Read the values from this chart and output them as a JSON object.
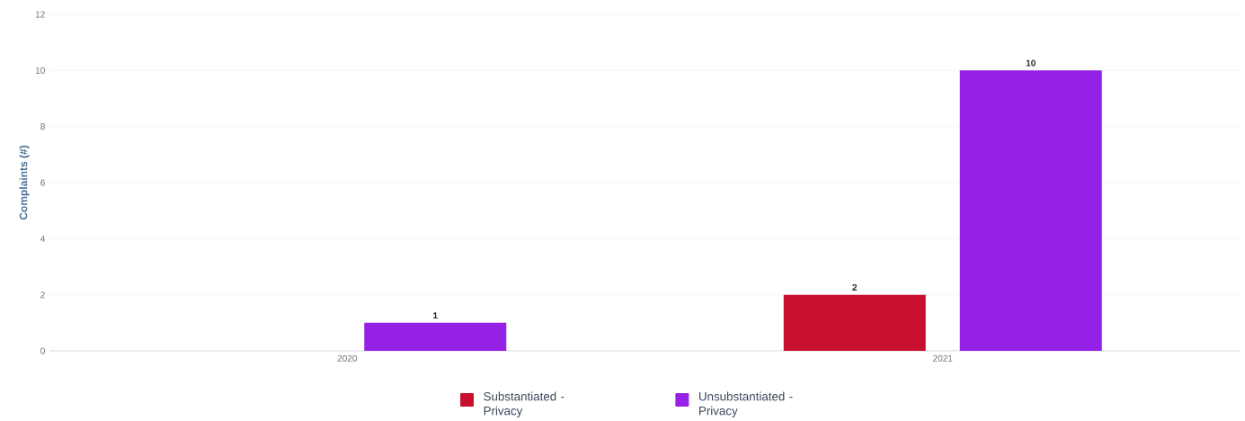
{
  "chart_data": {
    "type": "bar",
    "ylabel": "Complaints (#)",
    "categories": [
      "2020",
      "2021"
    ],
    "series": [
      {
        "name": "Substantiated - Privacy",
        "color": "#c8102e",
        "values": [
          null,
          2
        ]
      },
      {
        "name": "Unsubstantiated - Privacy",
        "color": "#9520e6",
        "values": [
          1,
          10
        ]
      }
    ],
    "ylim": [
      0,
      12
    ],
    "yticks": [
      0,
      2,
      4,
      6,
      8,
      10,
      12
    ],
    "grid": "y",
    "legend": "bottom",
    "data_labels": true
  }
}
